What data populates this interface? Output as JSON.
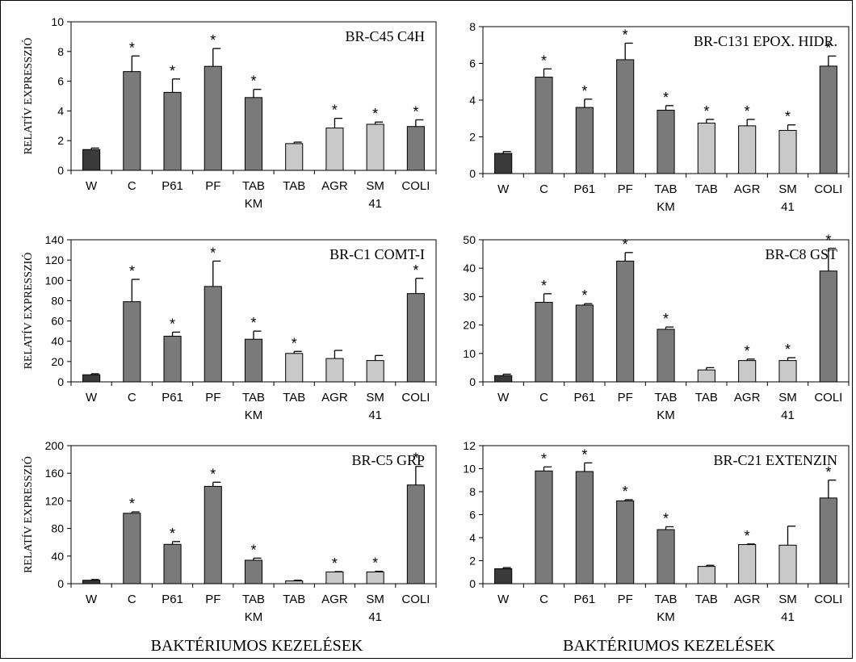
{
  "figure": {
    "y_axis_label": "RELATÍV EXPRESSZIÓ",
    "x_axis_label": "BAKTÉRIUMOS KEZELÉSEK"
  },
  "colors": {
    "control": "#3a3a3a",
    "dark_treatment": "#7a7a7a",
    "light_treatment": "#c9c9c9",
    "error_bar": "#000000"
  },
  "chart_data": [
    {
      "type": "bar",
      "title": "BR-C45 C4H",
      "categories": [
        "W",
        "C",
        "P61",
        "PF",
        "TAB KM",
        "TAB",
        "AGR",
        "SM 41",
        "COLI"
      ],
      "category_lines": [
        [
          "W"
        ],
        [
          "C"
        ],
        [
          "P61"
        ],
        [
          "PF"
        ],
        [
          "TAB",
          "KM"
        ],
        [
          "TAB"
        ],
        [
          "AGR"
        ],
        [
          "SM",
          "41"
        ],
        [
          "COLI"
        ]
      ],
      "values": [
        1.4,
        6.65,
        5.25,
        7.0,
        4.9,
        1.8,
        2.85,
        3.1,
        2.95
      ],
      "errors": [
        0.1,
        1.05,
        0.9,
        1.2,
        0.55,
        0.1,
        0.65,
        0.15,
        0.45
      ],
      "significant": [
        false,
        true,
        true,
        true,
        true,
        false,
        true,
        true,
        true
      ],
      "bar_colors": [
        "control",
        "dark_treatment",
        "dark_treatment",
        "dark_treatment",
        "dark_treatment",
        "light_treatment",
        "light_treatment",
        "light_treatment",
        "dark_treatment"
      ],
      "ylim": [
        0,
        10
      ],
      "yticks": [
        0,
        2,
        4,
        6,
        8,
        10
      ],
      "ylabel": "RELATÍV EXPRESSZIÓ",
      "xlabel": ""
    },
    {
      "type": "bar",
      "title": "BR-C131 EPOX. HIDR.",
      "categories": [
        "W",
        "C",
        "P61",
        "PF",
        "TAB KM",
        "TAB",
        "AGR",
        "SM 41",
        "COLI"
      ],
      "category_lines": [
        [
          "W"
        ],
        [
          "C"
        ],
        [
          "P61"
        ],
        [
          "PF"
        ],
        [
          "TAB",
          "KM"
        ],
        [
          "TAB"
        ],
        [
          "AGR"
        ],
        [
          "SM",
          "41"
        ],
        [
          "COLI"
        ]
      ],
      "values": [
        1.1,
        5.25,
        3.6,
        6.2,
        3.45,
        2.75,
        2.6,
        2.35,
        5.85
      ],
      "errors": [
        0.1,
        0.45,
        0.45,
        0.9,
        0.25,
        0.2,
        0.35,
        0.3,
        0.55
      ],
      "significant": [
        false,
        true,
        true,
        true,
        true,
        true,
        true,
        true,
        true
      ],
      "bar_colors": [
        "control",
        "dark_treatment",
        "dark_treatment",
        "dark_treatment",
        "dark_treatment",
        "light_treatment",
        "light_treatment",
        "light_treatment",
        "dark_treatment"
      ],
      "ylim": [
        0,
        8
      ],
      "yticks": [
        0,
        2,
        4,
        6,
        8
      ],
      "ylabel": "",
      "xlabel": ""
    },
    {
      "type": "bar",
      "title": "BR-C1 COMT-I",
      "categories": [
        "W",
        "C",
        "P61",
        "PF",
        "TAB KM",
        "TAB",
        "AGR",
        "SM 41",
        "COLI"
      ],
      "category_lines": [
        [
          "W"
        ],
        [
          "C"
        ],
        [
          "P61"
        ],
        [
          "PF"
        ],
        [
          "TAB",
          "KM"
        ],
        [
          "TAB"
        ],
        [
          "AGR"
        ],
        [
          "SM",
          "41"
        ],
        [
          "COLI"
        ]
      ],
      "values": [
        7,
        79,
        45,
        94,
        42,
        28,
        23,
        21,
        87
      ],
      "errors": [
        1,
        22,
        4,
        25,
        8,
        2,
        8,
        5,
        15
      ],
      "significant": [
        false,
        true,
        true,
        true,
        true,
        true,
        false,
        false,
        true
      ],
      "bar_colors": [
        "control",
        "dark_treatment",
        "dark_treatment",
        "dark_treatment",
        "dark_treatment",
        "light_treatment",
        "light_treatment",
        "light_treatment",
        "dark_treatment"
      ],
      "ylim": [
        0,
        140
      ],
      "yticks": [
        0,
        20,
        40,
        60,
        80,
        100,
        120,
        140
      ],
      "ylabel": "RELATÍV EXPRESSZIÓ",
      "xlabel": ""
    },
    {
      "type": "bar",
      "title": "BR-C8 GST",
      "categories": [
        "W",
        "C",
        "P61",
        "PF",
        "TAB KM",
        "TAB",
        "AGR",
        "SM 41",
        "COLI"
      ],
      "category_lines": [
        [
          "W"
        ],
        [
          "C"
        ],
        [
          "P61"
        ],
        [
          "PF"
        ],
        [
          "TAB",
          "KM"
        ],
        [
          "TAB"
        ],
        [
          "AGR"
        ],
        [
          "SM",
          "41"
        ],
        [
          "COLI"
        ]
      ],
      "values": [
        2.2,
        28,
        27,
        42.5,
        18.5,
        4.2,
        7.5,
        7.5,
        39
      ],
      "errors": [
        0.5,
        3,
        0.5,
        3,
        0.8,
        0.8,
        0.5,
        1,
        8
      ],
      "significant": [
        false,
        true,
        true,
        true,
        true,
        false,
        true,
        true,
        true
      ],
      "bar_colors": [
        "control",
        "dark_treatment",
        "dark_treatment",
        "dark_treatment",
        "dark_treatment",
        "light_treatment",
        "light_treatment",
        "light_treatment",
        "dark_treatment"
      ],
      "ylim": [
        0,
        50
      ],
      "yticks": [
        0,
        10,
        20,
        30,
        40,
        50
      ],
      "ylabel": "",
      "xlabel": ""
    },
    {
      "type": "bar",
      "title": "BR-C5 GRP",
      "categories": [
        "W",
        "C",
        "P61",
        "PF",
        "TAB KM",
        "TAB",
        "AGR",
        "SM 41",
        "COLI"
      ],
      "category_lines": [
        [
          "W"
        ],
        [
          "C"
        ],
        [
          "P61"
        ],
        [
          "PF"
        ],
        [
          "TAB",
          "KM"
        ],
        [
          "TAB"
        ],
        [
          "AGR"
        ],
        [
          "SM",
          "41"
        ],
        [
          "COLI"
        ]
      ],
      "values": [
        5,
        102,
        57,
        141,
        34,
        4,
        17,
        17,
        143
      ],
      "errors": [
        1,
        2,
        4,
        6,
        3,
        1,
        0.5,
        1,
        27
      ],
      "significant": [
        false,
        true,
        true,
        true,
        true,
        false,
        true,
        true,
        true
      ],
      "bar_colors": [
        "control",
        "dark_treatment",
        "dark_treatment",
        "dark_treatment",
        "dark_treatment",
        "light_treatment",
        "light_treatment",
        "light_treatment",
        "dark_treatment"
      ],
      "ylim": [
        0,
        200
      ],
      "yticks": [
        0,
        40,
        80,
        120,
        160,
        200
      ],
      "ylabel": "RELATÍV EXPRESSZIÓ",
      "xlabel": "BAKTÉRIUMOS KEZELÉSEK"
    },
    {
      "type": "bar",
      "title": "BR-C21 EXTENZIN",
      "categories": [
        "W",
        "C",
        "P61",
        "PF",
        "TAB KM",
        "TAB",
        "AGR",
        "SM 41",
        "COLI"
      ],
      "category_lines": [
        [
          "W"
        ],
        [
          "C"
        ],
        [
          "P61"
        ],
        [
          "PF"
        ],
        [
          "TAB",
          "KM"
        ],
        [
          "TAB"
        ],
        [
          "AGR"
        ],
        [
          "SM",
          "41"
        ],
        [
          "COLI"
        ]
      ],
      "values": [
        1.3,
        9.8,
        9.75,
        7.2,
        4.7,
        1.5,
        3.4,
        3.35,
        7.45
      ],
      "errors": [
        0.1,
        0.35,
        0.75,
        0.1,
        0.25,
        0.1,
        0.05,
        1.65,
        1.55
      ],
      "significant": [
        false,
        true,
        true,
        true,
        true,
        false,
        true,
        false,
        true
      ],
      "bar_colors": [
        "control",
        "dark_treatment",
        "dark_treatment",
        "dark_treatment",
        "dark_treatment",
        "light_treatment",
        "light_treatment",
        "light_treatment",
        "dark_treatment"
      ],
      "ylim": [
        0,
        12
      ],
      "yticks": [
        0,
        2,
        4,
        6,
        8,
        10,
        12
      ],
      "ylabel": "",
      "xlabel": "BAKTÉRIUMOS KEZELÉSEK"
    }
  ]
}
